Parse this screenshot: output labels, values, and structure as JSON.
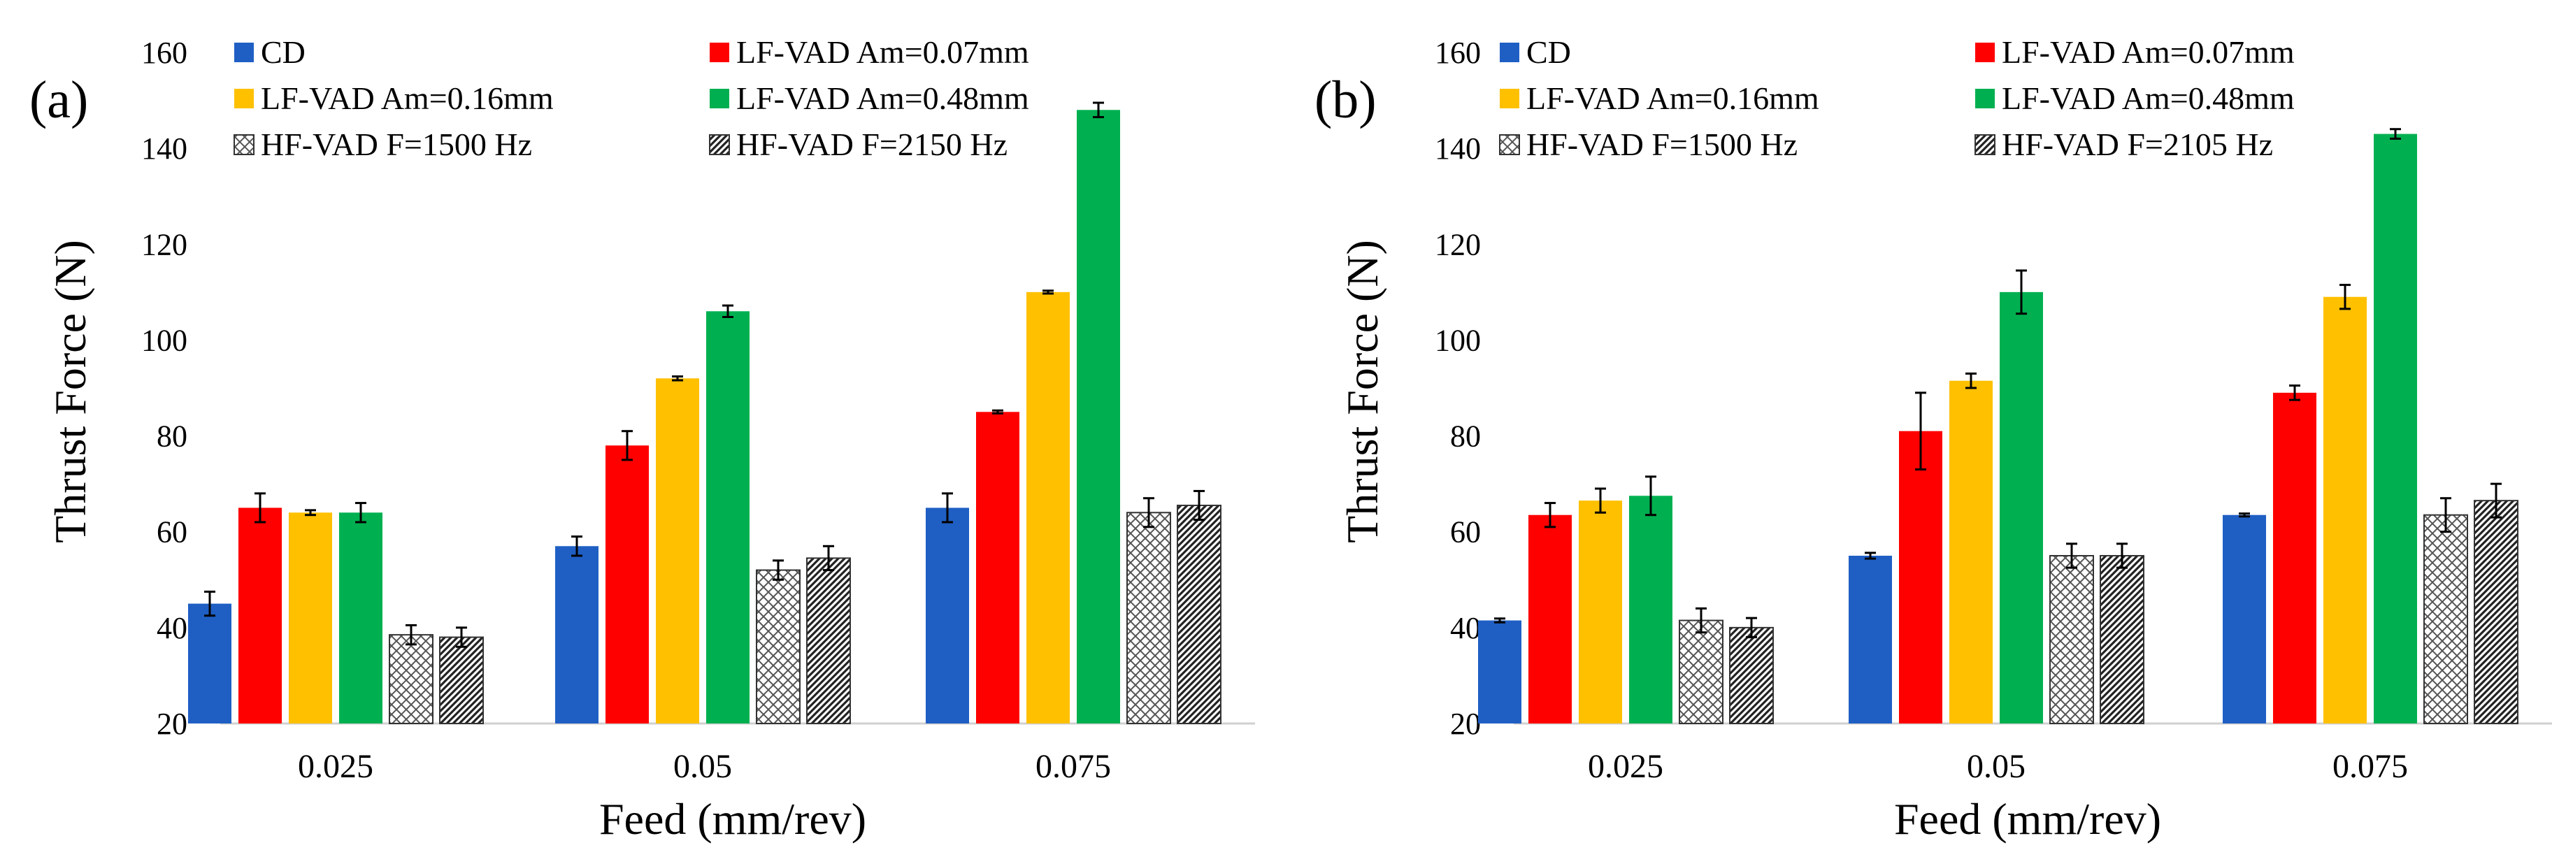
{
  "figure": {
    "legend_order": [
      0,
      1,
      2,
      3,
      4,
      5
    ]
  },
  "chart_data": [
    {
      "type": "bar",
      "panel": "(a)",
      "xlabel": "Feed (mm/rev)",
      "ylabel": "Thrust Force  (N)",
      "ylim": [
        20,
        160
      ],
      "yticks": [
        20,
        40,
        60,
        80,
        100,
        120,
        140,
        160
      ],
      "grid": false,
      "legend_position": "top",
      "categories": [
        "0.025",
        "0.05",
        "0.075"
      ],
      "series": [
        {
          "name": "CD",
          "color": "#1f5fc4",
          "pattern": "solid",
          "values": [
            45,
            57,
            65
          ],
          "errors": [
            2.5,
            2,
            3
          ]
        },
        {
          "name": "LF-VAD Am=0.07mm",
          "color": "#ff0000",
          "pattern": "solid",
          "values": [
            65,
            78,
            85
          ],
          "errors": [
            3,
            3,
            0.3
          ]
        },
        {
          "name": "LF-VAD Am=0.16mm",
          "color": "#ffc000",
          "pattern": "solid",
          "values": [
            64,
            92,
            110
          ],
          "errors": [
            0.5,
            0.4,
            0.3
          ]
        },
        {
          "name": "LF-VAD Am=0.48mm",
          "color": "#00b050",
          "pattern": "solid",
          "values": [
            64,
            106,
            148
          ],
          "errors": [
            2,
            1.2,
            1.5
          ]
        },
        {
          "name": "HF-VAD F=1500 Hz",
          "color": "#7f7f7f",
          "pattern": "cross",
          "values": [
            38.5,
            52,
            64
          ],
          "errors": [
            2,
            2,
            3
          ]
        },
        {
          "name": "HF-VAD F=2150 Hz",
          "color": "#404040",
          "pattern": "diag",
          "values": [
            38,
            54.5,
            65.5
          ],
          "errors": [
            2,
            2.5,
            3
          ]
        }
      ]
    },
    {
      "type": "bar",
      "panel": "(b)",
      "xlabel": "Feed (mm/rev)",
      "ylabel": "Thrust Force (N)",
      "ylim": [
        20,
        160
      ],
      "yticks": [
        20,
        40,
        60,
        80,
        100,
        120,
        140,
        160
      ],
      "grid": false,
      "legend_position": "top",
      "categories": [
        "0.025",
        "0.05",
        "0.075"
      ],
      "series": [
        {
          "name": "CD",
          "color": "#1f5fc4",
          "pattern": "solid",
          "values": [
            41.5,
            55,
            63.5
          ],
          "errors": [
            0.4,
            0.6,
            0.3
          ]
        },
        {
          "name": "LF-VAD Am=0.07mm",
          "color": "#ff0000",
          "pattern": "solid",
          "values": [
            63.5,
            81,
            89
          ],
          "errors": [
            2.5,
            8,
            1.5
          ]
        },
        {
          "name": "LF-VAD Am=0.16mm",
          "color": "#ffc000",
          "pattern": "solid",
          "values": [
            66.5,
            91.5,
            109
          ],
          "errors": [
            2.5,
            1.5,
            2.5
          ]
        },
        {
          "name": "LF-VAD Am=0.48mm",
          "color": "#00b050",
          "pattern": "solid",
          "values": [
            67.5,
            110,
            143
          ],
          "errors": [
            4,
            4.5,
            1
          ]
        },
        {
          "name": "HF-VAD F=1500 Hz",
          "color": "#7f7f7f",
          "pattern": "cross",
          "values": [
            41.5,
            55,
            63.5
          ],
          "errors": [
            2.5,
            2.5,
            3.5
          ]
        },
        {
          "name": "HF-VAD F=2105 Hz",
          "color": "#404040",
          "pattern": "diag",
          "values": [
            40,
            55,
            66.5
          ],
          "errors": [
            2,
            2.5,
            3.5
          ]
        }
      ]
    }
  ]
}
